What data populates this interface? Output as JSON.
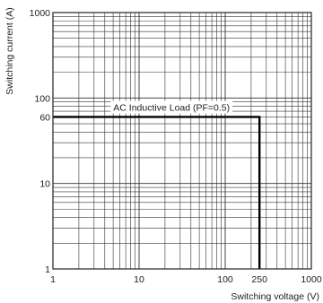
{
  "chart_data": {
    "type": "line",
    "xscale": "log",
    "yscale": "log",
    "xlim": [
      1,
      1000
    ],
    "ylim": [
      1,
      1000
    ],
    "grid": true,
    "xlabel": "Switching voltage (V)",
    "ylabel": "Switching current (A)",
    "xticks": [
      {
        "value": 1,
        "label": "1"
      },
      {
        "value": 10,
        "label": "10"
      },
      {
        "value": 100,
        "label": "100"
      },
      {
        "value": 250,
        "label": "250"
      },
      {
        "value": 1000,
        "label": "1000"
      }
    ],
    "yticks": [
      {
        "value": 1,
        "label": "1"
      },
      {
        "value": 10,
        "label": "10"
      },
      {
        "value": 60,
        "label": "60"
      },
      {
        "value": 100,
        "label": "100"
      },
      {
        "value": 1000,
        "label": "1000"
      }
    ],
    "series": [
      {
        "name": "AC Inductive Load (PF=0.5)",
        "color": "#000000",
        "x": [
          1,
          250,
          250
        ],
        "y": [
          60,
          60,
          1
        ]
      }
    ],
    "annotation": {
      "text": "AC Inductive Load (PF=0.5)",
      "x": 5.8,
      "y": 78
    }
  }
}
